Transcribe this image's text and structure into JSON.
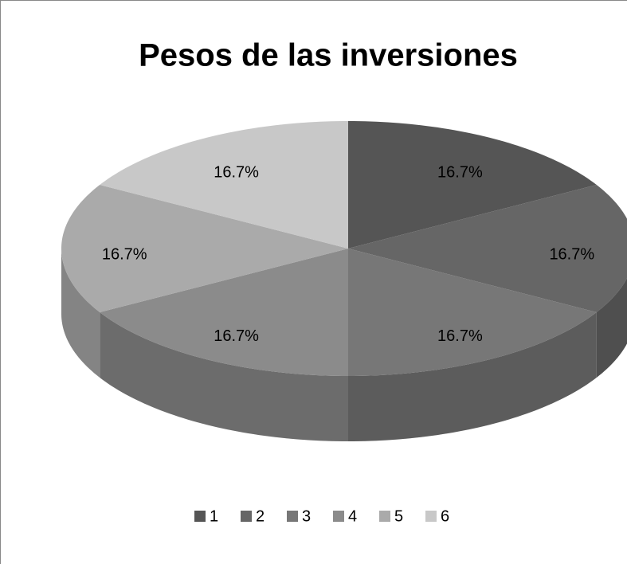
{
  "chart_data": {
    "type": "pie",
    "title": "Pesos de las inversiones",
    "categories": [
      "1",
      "2",
      "3",
      "4",
      "5",
      "6"
    ],
    "values": [
      16.7,
      16.7,
      16.7,
      16.7,
      16.7,
      16.7
    ],
    "value_labels": [
      "16.7%",
      "16.7%",
      "16.7%",
      "16.7%",
      "16.7%",
      "16.7%"
    ],
    "colors": [
      "#555555",
      "#666666",
      "#777777",
      "#8b8b8b",
      "#aaaaaa",
      "#c8c8c8"
    ],
    "legend": "bottom"
  }
}
